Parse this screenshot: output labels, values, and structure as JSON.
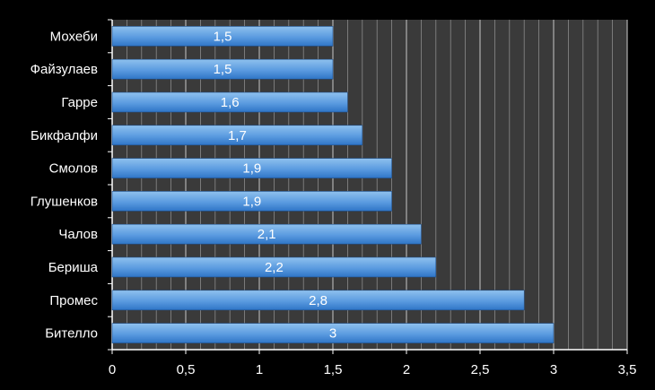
{
  "chart_data": {
    "type": "bar",
    "orientation": "horizontal",
    "categories": [
      "Мохеби",
      "Файзулаев",
      "Гарре",
      "Бикфалфи",
      "Смолов",
      "Глушенков",
      "Чалов",
      "Бериша",
      "Промес",
      "Бителло"
    ],
    "values": [
      1.5,
      1.5,
      1.6,
      1.7,
      1.9,
      1.9,
      2.1,
      2.2,
      2.8,
      3
    ],
    "data_labels": [
      "1,5",
      "1,5",
      "1,6",
      "1,7",
      "1,9",
      "1,9",
      "2,1",
      "2,2",
      "2,8",
      "3"
    ],
    "xlim": [
      0,
      3.5
    ],
    "x_ticks": [
      "0",
      "0,5",
      "1",
      "1,5",
      "2",
      "2,5",
      "3",
      "3,5"
    ],
    "grid": true,
    "legend": "none",
    "colors": {
      "background": "#000000",
      "plot_area": "#3a3a3a",
      "gridline": "#8a8a8a",
      "bar_top": "#8fc1ee",
      "bar_bottom": "#2f75c6",
      "text": "#ffffff"
    }
  }
}
